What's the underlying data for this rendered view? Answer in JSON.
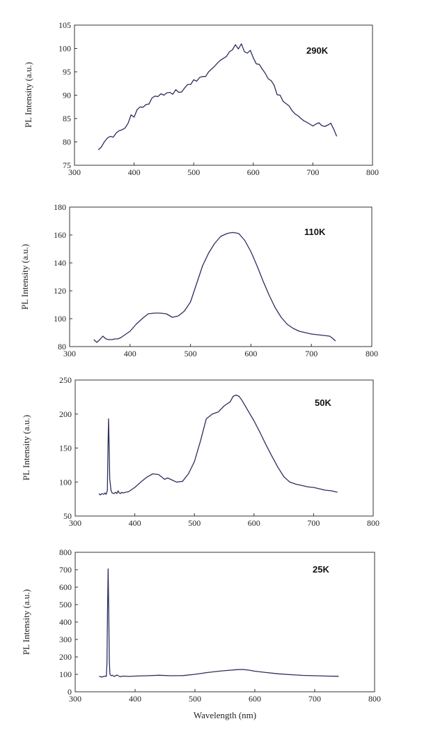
{
  "chart_data": [
    {
      "type": "line",
      "annotation": "290K",
      "ylabel": "PL Intensity (a.u.)",
      "xlabel": "",
      "xlim": [
        300,
        800
      ],
      "ylim": [
        75,
        105
      ],
      "xticks": [
        "300",
        "400",
        "500",
        "600",
        "700",
        "800"
      ],
      "yticks": [
        "75",
        "80",
        "85",
        "90",
        "95",
        "100",
        "105"
      ],
      "line_color": "#2b2d5c",
      "series": [
        {
          "x": [
            340,
            345,
            350,
            355,
            360,
            365,
            370,
            375,
            380,
            385,
            390,
            395,
            400,
            405,
            410,
            415,
            420,
            425,
            430,
            435,
            440,
            445,
            450,
            455,
            460,
            465,
            470,
            475,
            480,
            485,
            490,
            495,
            500,
            505,
            510,
            515,
            520,
            525,
            530,
            535,
            540,
            545,
            550,
            555,
            560,
            565,
            570,
            575,
            580,
            585,
            590,
            595,
            600,
            605,
            610,
            615,
            620,
            625,
            630,
            635,
            640,
            645,
            650,
            655,
            660,
            665,
            670,
            675,
            680,
            685,
            690,
            695,
            700,
            705,
            710,
            715,
            720,
            725,
            730,
            735,
            740
          ],
          "y": [
            78.3,
            78.9,
            80.0,
            80.8,
            81.2,
            81.0,
            81.9,
            82.4,
            82.6,
            83.0,
            84.0,
            85.8,
            85.3,
            86.9,
            87.5,
            87.4,
            88.0,
            88.1,
            89.4,
            89.8,
            89.7,
            90.3,
            90.0,
            90.5,
            90.6,
            90.2,
            91.2,
            90.6,
            90.7,
            91.6,
            92.3,
            92.3,
            93.3,
            93.0,
            93.8,
            94.0,
            94.0,
            95.0,
            95.6,
            96.2,
            96.9,
            97.5,
            97.9,
            98.3,
            99.3,
            99.7,
            100.8,
            99.9,
            101.0,
            99.3,
            99.0,
            99.6,
            98.0,
            96.7,
            96.6,
            95.6,
            94.7,
            93.5,
            93.1,
            92.1,
            90.1,
            90.0,
            88.7,
            88.2,
            87.7,
            86.7,
            86.0,
            85.6,
            85.0,
            84.5,
            84.2,
            83.8,
            83.4,
            83.8,
            84.1,
            83.5,
            83.3,
            83.6,
            84.0,
            82.7,
            81.2
          ]
        }
      ]
    },
    {
      "type": "line",
      "annotation": "110K",
      "ylabel": "PL Intensity (a.u.)",
      "xlabel": "",
      "xlim": [
        300,
        800
      ],
      "ylim": [
        80,
        180
      ],
      "xticks": [
        "300",
        "400",
        "500",
        "600",
        "700",
        "800"
      ],
      "yticks": [
        "80",
        "100",
        "120",
        "140",
        "160",
        "180"
      ],
      "line_color": "#2b2d5c",
      "series": [
        {
          "x": [
            340,
            345,
            350,
            355,
            360,
            365,
            370,
            375,
            380,
            385,
            390,
            400,
            410,
            420,
            430,
            440,
            450,
            460,
            470,
            480,
            490,
            500,
            510,
            520,
            530,
            540,
            550,
            560,
            565,
            570,
            575,
            580,
            590,
            600,
            610,
            620,
            630,
            640,
            650,
            660,
            670,
            680,
            690,
            700,
            710,
            720,
            730,
            735,
            740
          ],
          "y": [
            85.0,
            83.0,
            85.0,
            87.5,
            85.5,
            85.0,
            85.0,
            85.5,
            85.5,
            86.5,
            88.0,
            91.0,
            96.0,
            100.0,
            103.5,
            104.0,
            104.0,
            103.5,
            101.0,
            102.0,
            105.5,
            112.0,
            125.0,
            138.0,
            147.0,
            154.0,
            159.0,
            161.0,
            161.5,
            161.8,
            161.5,
            161.0,
            156.0,
            148.0,
            138.0,
            127.0,
            117.0,
            108.0,
            101.0,
            96.0,
            93.0,
            91.0,
            90.0,
            89.0,
            88.5,
            88.0,
            87.5,
            86.0,
            84.0
          ]
        }
      ]
    },
    {
      "type": "line",
      "annotation": "50K",
      "ylabel": "PL Intensity (a.u.)",
      "xlabel": "",
      "xlim": [
        300,
        800
      ],
      "ylim": [
        50,
        250
      ],
      "xticks": [
        "300",
        "400",
        "500",
        "600",
        "700",
        "800"
      ],
      "yticks": [
        "50",
        "100",
        "150",
        "200",
        "250"
      ],
      "line_color": "#2b2d5c",
      "series": [
        {
          "x": [
            340,
            342,
            345,
            348,
            350,
            352,
            354,
            355,
            356,
            357,
            358,
            360,
            362,
            365,
            368,
            370,
            372,
            374,
            376,
            378,
            380,
            385,
            390,
            400,
            410,
            420,
            430,
            440,
            450,
            455,
            460,
            470,
            480,
            490,
            500,
            510,
            520,
            530,
            540,
            550,
            560,
            565,
            570,
            575,
            580,
            590,
            600,
            610,
            620,
            630,
            640,
            650,
            660,
            670,
            680,
            690,
            700,
            710,
            720,
            730,
            740
          ],
          "y": [
            83,
            81,
            83,
            82,
            84,
            82,
            88,
            150,
            193,
            150,
            105,
            88,
            84,
            83,
            85,
            83,
            87,
            84,
            83,
            85,
            84,
            85,
            86,
            92,
            100,
            107,
            112,
            111,
            104,
            106,
            104,
            100,
            101,
            112,
            130,
            160,
            193,
            200,
            203,
            212,
            218,
            226,
            228,
            226,
            220,
            205,
            190,
            173,
            155,
            138,
            122,
            108,
            100,
            97,
            95,
            93,
            92,
            90,
            88,
            87,
            85
          ]
        }
      ]
    },
    {
      "type": "line",
      "annotation": "25K",
      "ylabel": "PL Intensity (a.u.)",
      "xlabel": "Wavelength (nm)",
      "xlim": [
        300,
        800
      ],
      "ylim": [
        0,
        800
      ],
      "xticks": [
        "300",
        "400",
        "500",
        "600",
        "700",
        "800"
      ],
      "yticks": [
        "0",
        "100",
        "200",
        "300",
        "400",
        "500",
        "600",
        "700",
        "800"
      ],
      "line_color": "#2b2d5c",
      "series": [
        {
          "x": [
            340,
            345,
            350,
            352,
            353,
            354,
            355,
            356,
            357,
            358,
            360,
            362,
            365,
            370,
            375,
            380,
            390,
            400,
            420,
            440,
            460,
            480,
            500,
            520,
            540,
            560,
            570,
            580,
            590,
            600,
            620,
            640,
            660,
            680,
            700,
            720,
            740
          ],
          "y": [
            88,
            85,
            90,
            88,
            160,
            450,
            705,
            450,
            180,
            100,
            92,
            95,
            88,
            96,
            86,
            90,
            88,
            90,
            92,
            95,
            92,
            93,
            100,
            110,
            118,
            124,
            127,
            128,
            124,
            118,
            110,
            103,
            98,
            94,
            92,
            90,
            89
          ]
        }
      ]
    }
  ]
}
